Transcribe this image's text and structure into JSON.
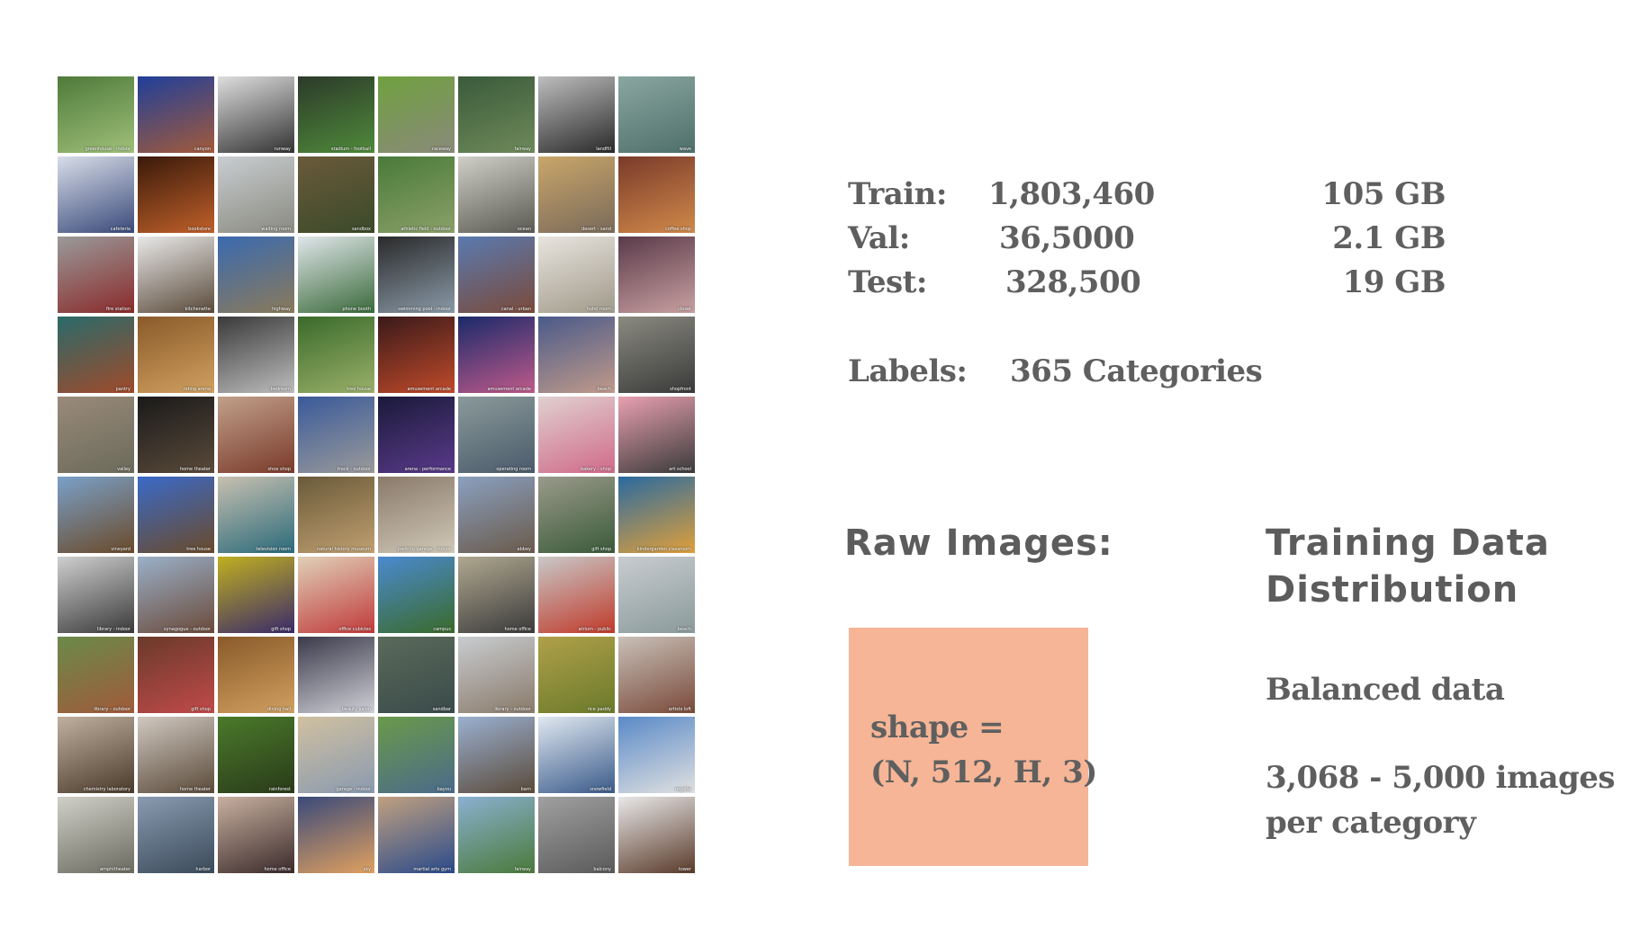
{
  "stats": {
    "train_label": "Train:",
    "train_count": "1,803,460",
    "train_size": "105 GB",
    "val_label": "Val:",
    "val_count": "36,5000",
    "val_size": "2.1 GB",
    "test_label": "Test:",
    "test_count": "328,500",
    "test_size": "19 GB",
    "labels_label": "Labels:",
    "labels_value": "365 Categories"
  },
  "raw_images": {
    "heading": "Raw Images:",
    "shape_line1": "shape =",
    "shape_line2": "(N, 512, H, 3)"
  },
  "distribution": {
    "heading_line1": "Training Data",
    "heading_line2": "Distribution",
    "balanced": "Balanced data",
    "range_line1": "3,068 - 5,000 images",
    "range_line2": "per category"
  },
  "thumbnails": [
    {
      "caption": "greenhouse - indoor",
      "colors": [
        "#4f7a3a",
        "#9fc07a"
      ]
    },
    {
      "caption": "canyon",
      "colors": [
        "#1f3f9a",
        "#a35a3a"
      ]
    },
    {
      "caption": "runway",
      "colors": [
        "#dedede",
        "#333333"
      ]
    },
    {
      "caption": "stadium - football",
      "colors": [
        "#2c3a2a",
        "#4f8a3a"
      ]
    },
    {
      "caption": "raceway",
      "colors": [
        "#6fa03f",
        "#8a8a7a"
      ]
    },
    {
      "caption": "fairway",
      "colors": [
        "#3a5a3a",
        "#6e8a5a"
      ]
    },
    {
      "caption": "landfill",
      "colors": [
        "#bdbdbd",
        "#2a2a2a"
      ]
    },
    {
      "caption": "wave",
      "colors": [
        "#8aa6a0",
        "#4f6f6a"
      ]
    },
    {
      "caption": "cafeteria",
      "colors": [
        "#d8dde8",
        "#3a4a7a"
      ]
    },
    {
      "caption": "bookstore",
      "colors": [
        "#3a1a0a",
        "#c0602a"
      ]
    },
    {
      "caption": "waiting room",
      "colors": [
        "#c8cdd0",
        "#8a8a80"
      ]
    },
    {
      "caption": "sandbox",
      "colors": [
        "#6a5a3a",
        "#3a4a2a"
      ]
    },
    {
      "caption": "athletic field - outdoor",
      "colors": [
        "#4a7a3a",
        "#8aa06a"
      ]
    },
    {
      "caption": "ocean",
      "colors": [
        "#cfcfc8",
        "#5a5a52"
      ]
    },
    {
      "caption": "desert - sand",
      "colors": [
        "#c9a66a",
        "#7a6a5a"
      ]
    },
    {
      "caption": "coffee shop",
      "colors": [
        "#7a3a2a",
        "#d08a4a"
      ]
    },
    {
      "caption": "fire station",
      "colors": [
        "#9a9a9a",
        "#8a2a2a"
      ]
    },
    {
      "caption": "kitchenette",
      "colors": [
        "#e8e8e8",
        "#5a4a3a"
      ]
    },
    {
      "caption": "highway",
      "colors": [
        "#3a6ab0",
        "#8a7a5a"
      ]
    },
    {
      "caption": "phone booth",
      "colors": [
        "#e0e6ea",
        "#3a6a3a"
      ]
    },
    {
      "caption": "swimming pool - indoor",
      "colors": [
        "#2a2a2a",
        "#8a9aa8"
      ]
    },
    {
      "caption": "canal - urban",
      "colors": [
        "#5a7ab0",
        "#7a4a3a"
      ]
    },
    {
      "caption": "hotel room",
      "colors": [
        "#e8e4de",
        "#a09a8a"
      ]
    },
    {
      "caption": "closet",
      "colors": [
        "#5a3a4a",
        "#c8a0a0"
      ]
    },
    {
      "caption": "pantry",
      "colors": [
        "#2a6a6a",
        "#a04a2a"
      ]
    },
    {
      "caption": "riding arena",
      "colors": [
        "#8a5a2a",
        "#d0a060"
      ]
    },
    {
      "caption": "bedroom",
      "colors": [
        "#3a3a3a",
        "#bdbdbd"
      ]
    },
    {
      "caption": "tree house",
      "colors": [
        "#3a6a2a",
        "#9ab06a"
      ]
    },
    {
      "caption": "amusement arcade",
      "colors": [
        "#3a1a1a",
        "#c04a2a"
      ]
    },
    {
      "caption": "amusement arcade",
      "colors": [
        "#1a2a6a",
        "#c05a8a"
      ]
    },
    {
      "caption": "beach",
      "colors": [
        "#4a5a8a",
        "#c09a8a"
      ]
    },
    {
      "caption": "shopfront",
      "colors": [
        "#8a8a80",
        "#3a3a3a"
      ]
    },
    {
      "caption": "valley",
      "colors": [
        "#9a8a7a",
        "#6a6a5a"
      ]
    },
    {
      "caption": "home theater",
      "colors": [
        "#1a1a1a",
        "#5a4a3a"
      ]
    },
    {
      "caption": "shoe shop",
      "colors": [
        "#c0a08a",
        "#7a3a2a"
      ]
    },
    {
      "caption": "track - outdoor",
      "colors": [
        "#3a5a9a",
        "#9a9a9a"
      ]
    },
    {
      "caption": "arena - performance",
      "colors": [
        "#1a1a3a",
        "#5a3a8a"
      ]
    },
    {
      "caption": "operating room",
      "colors": [
        "#8a9a9a",
        "#4a5a6a"
      ]
    },
    {
      "caption": "bakery - shop",
      "colors": [
        "#e0d0d0",
        "#d06a8a"
      ]
    },
    {
      "caption": "art school",
      "colors": [
        "#e8a0b0",
        "#3a3a3a"
      ]
    },
    {
      "caption": "vineyard",
      "colors": [
        "#7aa0c8",
        "#6a4a2a"
      ]
    },
    {
      "caption": "tree house",
      "colors": [
        "#3a6ac8",
        "#6a4a2a"
      ]
    },
    {
      "caption": "television room",
      "colors": [
        "#c8c0b0",
        "#2a6a7a"
      ]
    },
    {
      "caption": "natural history museum",
      "colors": [
        "#6a5a3a",
        "#c0a070"
      ]
    },
    {
      "caption": "parking garage - indoor",
      "colors": [
        "#8a7a6a",
        "#d0c8b8"
      ]
    },
    {
      "caption": "abbey",
      "colors": [
        "#8aa0c0",
        "#6a5a4a"
      ]
    },
    {
      "caption": "gift shop",
      "colors": [
        "#9a9a8a",
        "#3a5a3a"
      ]
    },
    {
      "caption": "kindergarden classroom",
      "colors": [
        "#2a6aa0",
        "#e0a03a"
      ]
    },
    {
      "caption": "library - indoor",
      "colors": [
        "#cfcfcf",
        "#3a3a3a"
      ]
    },
    {
      "caption": "synagogue - outdoor",
      "colors": [
        "#9ab0c8",
        "#6a4a3a"
      ]
    },
    {
      "caption": "gift shop",
      "colors": [
        "#c0b020",
        "#3a2a6a"
      ]
    },
    {
      "caption": "office cubicles",
      "colors": [
        "#e0d0b8",
        "#c03a3a"
      ]
    },
    {
      "caption": "campus",
      "colors": [
        "#4a8ad0",
        "#3a6a2a"
      ]
    },
    {
      "caption": "home office",
      "colors": [
        "#b0a890",
        "#3a3a3a"
      ]
    },
    {
      "caption": "atrium - public",
      "colors": [
        "#c8c8c8",
        "#c03a2a"
      ]
    },
    {
      "caption": "beach",
      "colors": [
        "#c8ccd0",
        "#8a9a9a"
      ]
    },
    {
      "caption": "library - outdoor",
      "colors": [
        "#6a8a4a",
        "#a05a3a"
      ]
    },
    {
      "caption": "gift shop",
      "colors": [
        "#6a3a2a",
        "#c04a4a"
      ]
    },
    {
      "caption": "dining hall",
      "colors": [
        "#8a5a2a",
        "#d0a060"
      ]
    },
    {
      "caption": "beauty salon",
      "colors": [
        "#3a3a4a",
        "#d0d0d8"
      ]
    },
    {
      "caption": "sandbar",
      "colors": [
        "#5a6a5a",
        "#3a4a4a"
      ]
    },
    {
      "caption": "library - outdoor",
      "colors": [
        "#c8ccd0",
        "#8a7a6a"
      ]
    },
    {
      "caption": "rice paddy",
      "colors": [
        "#b0a04a",
        "#6a7a2a"
      ]
    },
    {
      "caption": "artists loft",
      "colors": [
        "#c8c0b8",
        "#7a4a3a"
      ]
    },
    {
      "caption": "chemistry laboratory",
      "colors": [
        "#c0b0a0",
        "#4a3a2a"
      ]
    },
    {
      "caption": "home theater",
      "colors": [
        "#d0c8c0",
        "#5a4a3a"
      ]
    },
    {
      "caption": "rainforest",
      "colors": [
        "#4a7a2a",
        "#2a3a1a"
      ]
    },
    {
      "caption": "garage - indoor",
      "colors": [
        "#d0c0a0",
        "#8a9ab0"
      ]
    },
    {
      "caption": "bayou",
      "colors": [
        "#6a9a4a",
        "#4a6a8a"
      ]
    },
    {
      "caption": "barn",
      "colors": [
        "#9ab0d0",
        "#5a4a3a"
      ]
    },
    {
      "caption": "snowfield",
      "colors": [
        "#e0e8f0",
        "#3a5a8a"
      ]
    },
    {
      "caption": "regatta",
      "colors": [
        "#5a8ac8",
        "#e0e0e0"
      ]
    },
    {
      "caption": "amphitheater",
      "colors": [
        "#d0d0c8",
        "#6a6a60"
      ]
    },
    {
      "caption": "harbor",
      "colors": [
        "#8a9ab0",
        "#3a4a5a"
      ]
    },
    {
      "caption": "home office",
      "colors": [
        "#c8b0a0",
        "#3a2a2a"
      ]
    },
    {
      "caption": "sky",
      "colors": [
        "#3a4a7a",
        "#e0a060"
      ]
    },
    {
      "caption": "martial arts gym",
      "colors": [
        "#c0a080",
        "#2a4a8a"
      ]
    },
    {
      "caption": "fairway",
      "colors": [
        "#8ab0d0",
        "#4a7a3a"
      ]
    },
    {
      "caption": "balcony",
      "colors": [
        "#a0a0a0",
        "#5a5a5a"
      ]
    },
    {
      "caption": "tower",
      "colors": [
        "#e8e8e8",
        "#5a3a2a"
      ]
    }
  ]
}
